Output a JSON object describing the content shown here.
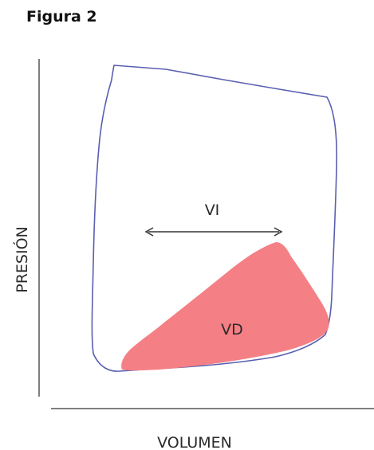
{
  "title": "Figura 2",
  "axes": {
    "x_label": "VOLUMEN",
    "y_label": "PRESIÓN"
  },
  "loops": {
    "left": {
      "label": "VI",
      "stroke_color": "#5a5fb0"
    },
    "right": {
      "label": "VD",
      "fill_color": "#f47f85"
    }
  },
  "axis_color": "#555555"
}
